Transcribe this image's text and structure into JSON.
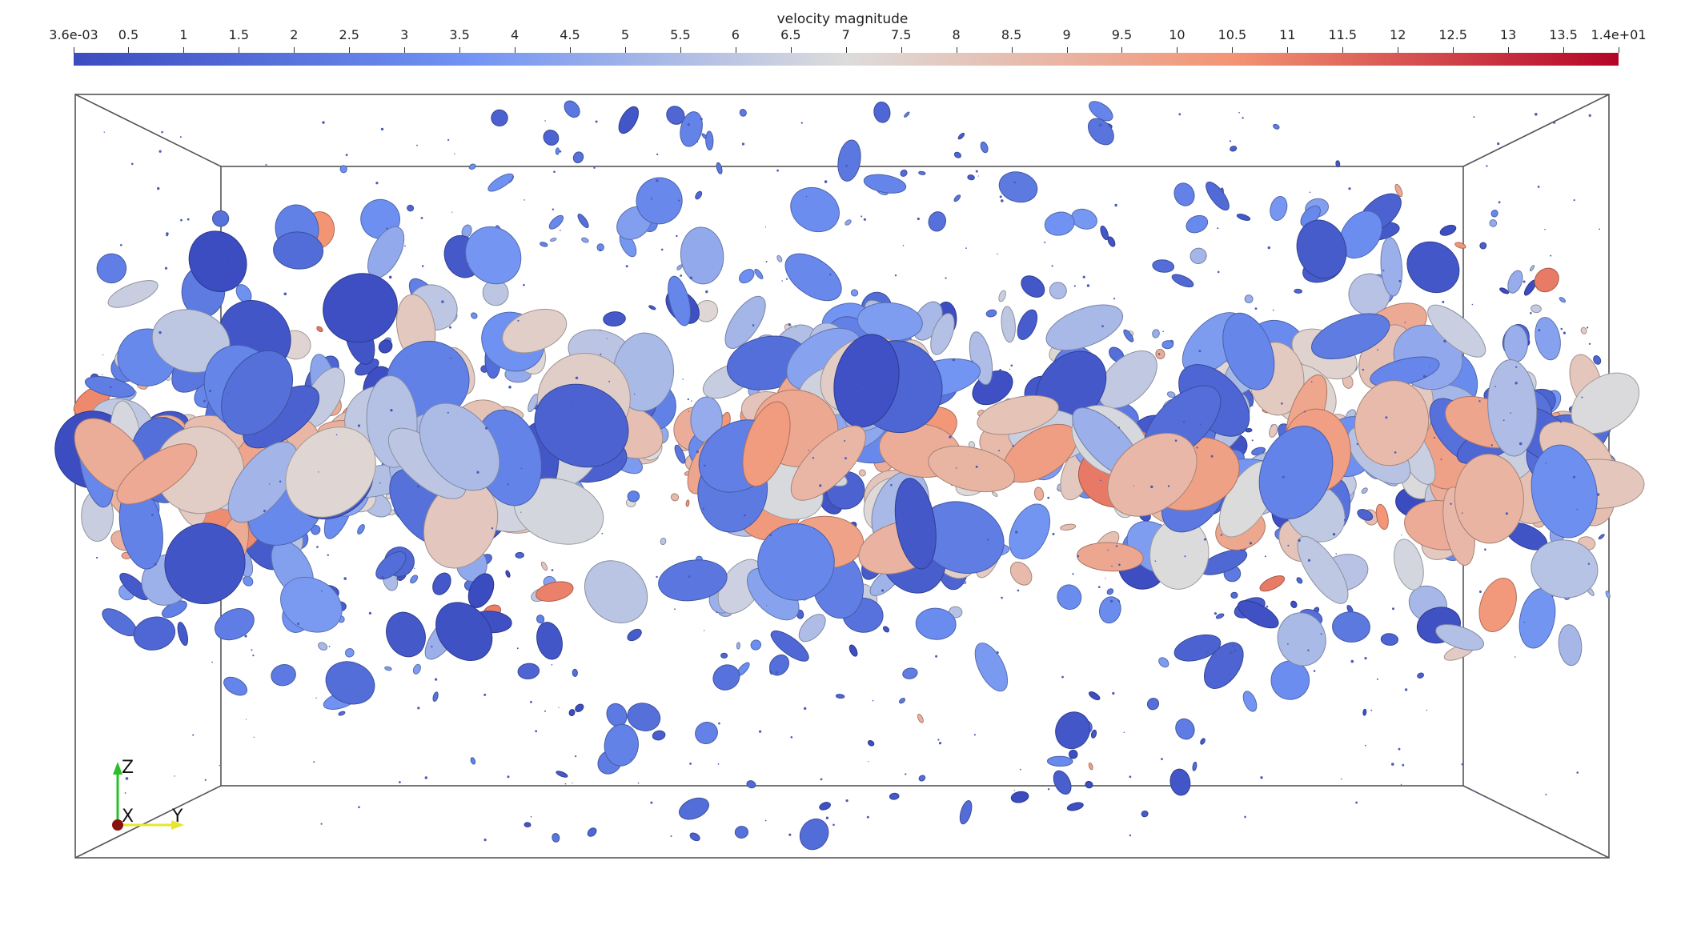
{
  "colorbar": {
    "title": "velocity magnitude",
    "min_label": "3.6e-03",
    "max_label": "1.4e+01",
    "min": 0.0036,
    "max": 14,
    "ticks": [
      "0.5",
      "1",
      "1.5",
      "2",
      "2.5",
      "3",
      "3.5",
      "4",
      "4.5",
      "5",
      "5.5",
      "6",
      "6.5",
      "7",
      "7.5",
      "8",
      "8.5",
      "9",
      "9.5",
      "10",
      "10.5",
      "11",
      "11.5",
      "12",
      "12.5",
      "13",
      "13.5"
    ],
    "colormap": [
      "#3b4cc0",
      "#6f92f3",
      "#dddcdc",
      "#f39474",
      "#b40426"
    ]
  },
  "axes": {
    "z_label": "Z",
    "x_label": "X",
    "y_label": "Y"
  },
  "render": {
    "style": "3D bounding box with ellipsoid glyphs colored by velocity magnitude"
  }
}
